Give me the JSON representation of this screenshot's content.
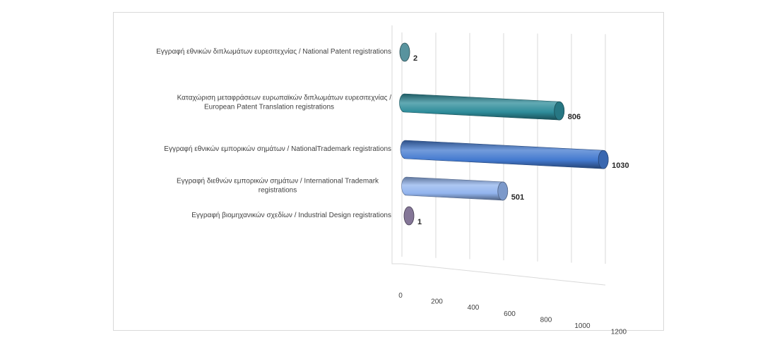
{
  "chart_data": {
    "type": "bar",
    "orientation": "horizontal",
    "style": "3d-cylinder",
    "categories": [
      [
        "Εγγραφή εθνικών  διπλωμάτων ευρεσιτεχνίας / National Patent registrations"
      ],
      [
        "Καταχώριση  μεταφράσεων ευρωπαϊκών  διπλωμάτων ευρεσιτεχνίας  /",
        "European Patent Translation registrations"
      ],
      [
        "Εγγραφή εθνικών  εμπορικών σημάτων / NationalTrademark registrations"
      ],
      [
        "Εγγραφή διεθνών  εμπορικών σημάτων / International Trademark",
        "registrations"
      ],
      [
        "Εγγραφή βιομηχανικών  σχεδίων  / Industrial Design registrations"
      ]
    ],
    "values": [
      2,
      806,
      1030,
      501,
      1
    ],
    "value_labels": [
      "2",
      "806",
      "1030",
      "501",
      "1"
    ],
    "bar_colors": [
      "#4f8d99",
      "#2e8c9a",
      "#4379cf",
      "#92b4ee",
      "#7d6f92"
    ],
    "xlim": [
      0,
      1200
    ],
    "x_ticks": [
      "0",
      "200",
      "400",
      "600",
      "800",
      "1000",
      "1200"
    ],
    "grid": true,
    "legend": "none"
  }
}
